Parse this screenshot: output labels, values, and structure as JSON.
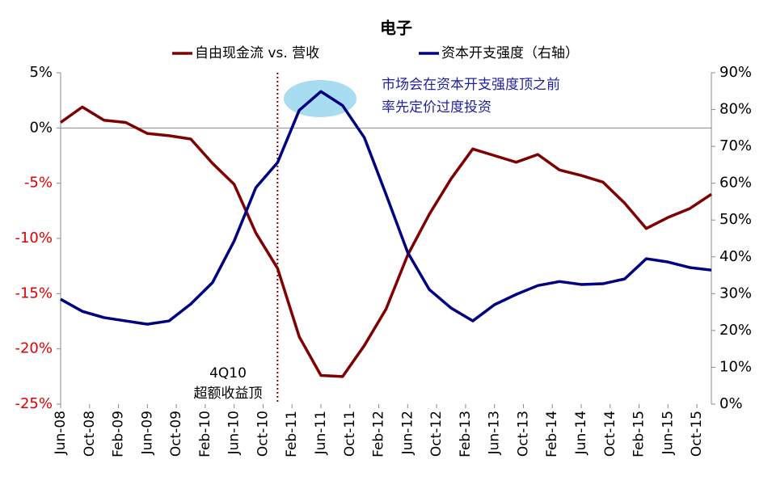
{
  "chart_data": {
    "type": "line",
    "title": "电子",
    "annotations": [
      "市场会在资本开支强度顶之前",
      "率先定价过度投资",
      "4Q10",
      "超额收益顶"
    ],
    "x": [
      0,
      3,
      6,
      9,
      12,
      15,
      18,
      21,
      24,
      27,
      30,
      33,
      36,
      39,
      42,
      45,
      48,
      51,
      54,
      57,
      60,
      63,
      66,
      69,
      72,
      75,
      78,
      81,
      84,
      87,
      90
    ],
    "xlim": [
      0,
      90
    ],
    "xticks": [
      {
        "value": 0,
        "label": "Jun-08"
      },
      {
        "value": 4,
        "label": "Oct-08"
      },
      {
        "value": 8,
        "label": "Feb-09"
      },
      {
        "value": 12,
        "label": "Jun-09"
      },
      {
        "value": 16,
        "label": "Oct-09"
      },
      {
        "value": 20,
        "label": "Feb-10"
      },
      {
        "value": 24,
        "label": "Jun-10"
      },
      {
        "value": 28,
        "label": "Oct-10"
      },
      {
        "value": 32,
        "label": "Feb-11"
      },
      {
        "value": 36,
        "label": "Jun-11"
      },
      {
        "value": 40,
        "label": "Oct-11"
      },
      {
        "value": 44,
        "label": "Feb-12"
      },
      {
        "value": 48,
        "label": "Jun-12"
      },
      {
        "value": 52,
        "label": "Oct-12"
      },
      {
        "value": 56,
        "label": "Feb-13"
      },
      {
        "value": 60,
        "label": "Jun-13"
      },
      {
        "value": 64,
        "label": "Oct-13"
      },
      {
        "value": 68,
        "label": "Feb-14"
      },
      {
        "value": 72,
        "label": "Jun-14"
      },
      {
        "value": 76,
        "label": "Oct-14"
      },
      {
        "value": 80,
        "label": "Feb-15"
      },
      {
        "value": 84,
        "label": "Jun-15"
      },
      {
        "value": 88,
        "label": "Oct-15"
      }
    ],
    "ylim": [
      -25,
      5
    ],
    "yticks": [
      {
        "value": 5,
        "label": "5%"
      },
      {
        "value": 0,
        "label": "0%"
      },
      {
        "value": -5,
        "label": "-5%"
      },
      {
        "value": -10,
        "label": "-10%"
      },
      {
        "value": -15,
        "label": "-15%"
      },
      {
        "value": -20,
        "label": "-20%"
      },
      {
        "value": -25,
        "label": "-25%"
      }
    ],
    "y2lim": [
      0,
      90
    ],
    "y2ticks": [
      {
        "value": 90,
        "label": "90%"
      },
      {
        "value": 80,
        "label": "80%"
      },
      {
        "value": 70,
        "label": "70%"
      },
      {
        "value": 60,
        "label": "60%"
      },
      {
        "value": 50,
        "label": "50%"
      },
      {
        "value": 40,
        "label": "40%"
      },
      {
        "value": 30,
        "label": "30%"
      },
      {
        "value": 20,
        "label": "20%"
      },
      {
        "value": 10,
        "label": "10%"
      },
      {
        "value": 0,
        "label": "0%"
      }
    ],
    "series": [
      {
        "name": "自由现金流 vs. 营收",
        "color": "#7f0000",
        "values": [
          0.5,
          1.9,
          0.7,
          0.5,
          -0.5,
          -0.7,
          -1.0,
          -3.2,
          -5.1,
          -9.5,
          -12.7,
          -18.9,
          -22.4,
          -22.5,
          -19.7,
          -16.4,
          -11.5,
          -7.8,
          -4.6,
          -1.9,
          -2.5,
          -3.1,
          -2.4,
          -3.8,
          -4.3,
          -4.9,
          -6.8,
          -9.1,
          -8.1,
          -7.3,
          -6.0
        ]
      },
      {
        "name": "资本开支强度（右轴）",
        "color": "#000080",
        "axis": "y2",
        "values": [
          28.5,
          25.2,
          23.5,
          22.6,
          21.7,
          22.6,
          27.2,
          33,
          44.3,
          58.8,
          65.6,
          79.8,
          84.9,
          81.1,
          72.4,
          57,
          41.2,
          31.1,
          26.1,
          22.6,
          27,
          29.8,
          32.2,
          33.3,
          32.5,
          32.7,
          34,
          39.5,
          38.6,
          37.1,
          36.4
        ]
      }
    ]
  }
}
